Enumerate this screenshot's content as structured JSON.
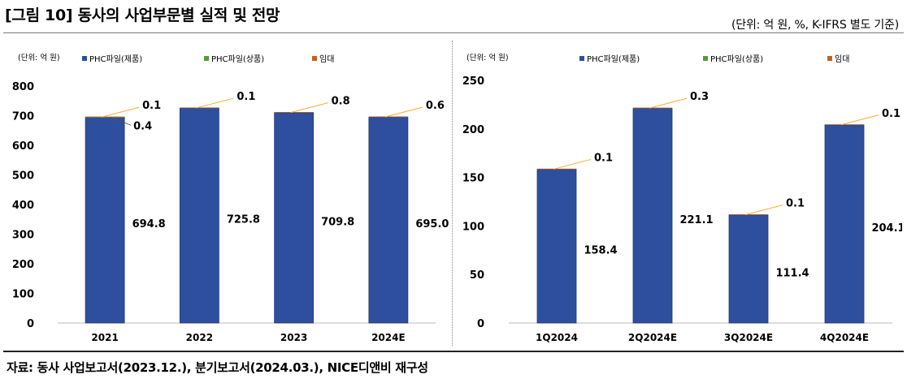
{
  "title": "[그림 10] 동사의 사업부문별 실적 및 전망",
  "unit_note": "(단위: 억 원, %, K-IFRS 별도 기준)",
  "source": "자료: 동사 사업보고서(2023.12.), 분기보고서(2024.03.), NICE디앤비 재구성",
  "colors": {
    "product": "#2e4f9e",
    "goods": "#5a9a3c",
    "lease": "#c4621f",
    "leader": "#f0b030"
  },
  "chart_data": [
    {
      "type": "bar",
      "stacked": true,
      "unit_label": "(단위: 억 원)",
      "legend": [
        "PHC파일(제품)",
        "PHC파일(상품)",
        "임대"
      ],
      "categories": [
        "2021",
        "2022",
        "2023",
        "2024E"
      ],
      "series": [
        {
          "name": "PHC파일(제품)",
          "values": [
            694.8,
            725.8,
            709.8,
            695.0
          ],
          "labels": [
            "694.8",
            "725.8",
            "709.8",
            "695.0"
          ]
        },
        {
          "name": "PHC파일(상품)",
          "values": [
            0.4,
            0,
            0,
            0
          ],
          "labels": [
            "0.4",
            "",
            "",
            ""
          ]
        },
        {
          "name": "임대",
          "values": [
            0.1,
            0.1,
            0.8,
            0.6
          ],
          "labels": [
            "0.1",
            "0.1",
            "0.8",
            "0.6"
          ]
        }
      ],
      "ylim": [
        0,
        800
      ],
      "yticks": [
        0,
        100,
        200,
        300,
        400,
        500,
        600,
        700,
        800
      ]
    },
    {
      "type": "bar",
      "stacked": true,
      "unit_label": "(단위: 억 원)",
      "legend": [
        "PHC파일(제품)",
        "PHC파일(상품)",
        "임대"
      ],
      "categories": [
        "1Q2024",
        "2Q2024E",
        "3Q2024E",
        "4Q2024E"
      ],
      "series": [
        {
          "name": "PHC파일(제품)",
          "values": [
            158.4,
            221.1,
            111.4,
            204.1
          ],
          "labels": [
            "158.4",
            "221.1",
            "111.4",
            "204.1"
          ]
        },
        {
          "name": "PHC파일(상품)",
          "values": [
            0,
            0,
            0,
            0
          ],
          "labels": [
            "",
            "",
            "",
            ""
          ]
        },
        {
          "name": "임대",
          "values": [
            0.1,
            0.3,
            0.1,
            0.1
          ],
          "labels": [
            "0.1",
            "0.3",
            "0.1",
            "0.1"
          ]
        }
      ],
      "ylim": [
        0,
        250
      ],
      "yticks": [
        0,
        50,
        100,
        150,
        200,
        250
      ]
    }
  ]
}
